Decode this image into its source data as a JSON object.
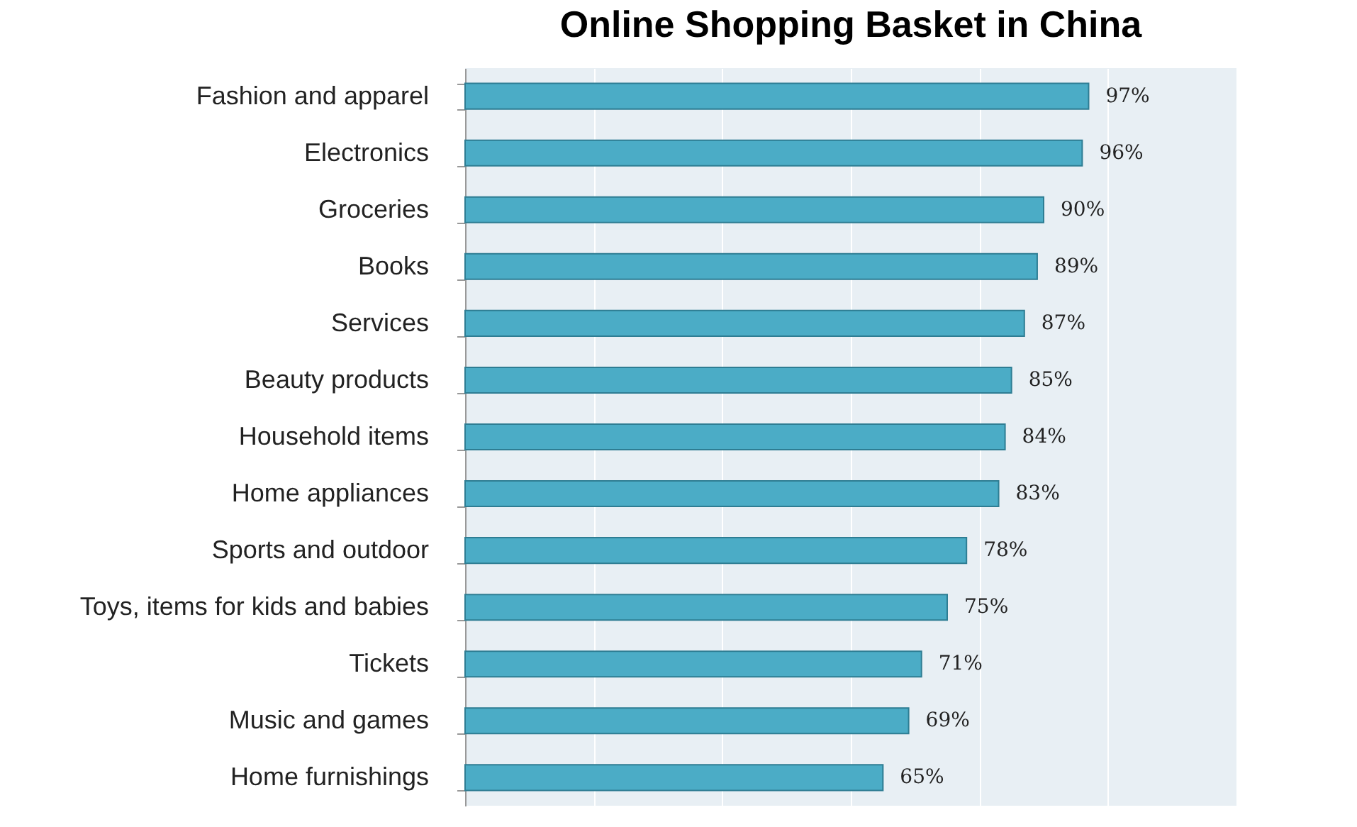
{
  "chart_data": {
    "type": "bar",
    "orientation": "horizontal",
    "title": "Online Shopping Basket in China",
    "categories": [
      "Fashion and apparel",
      "Electronics",
      "Groceries",
      "Books",
      "Services",
      "Beauty products",
      "Household items",
      "Home appliances",
      "Sports and outdoor",
      "Toys, items for kids and babies",
      "Tickets",
      "Music and games",
      "Home furnishings"
    ],
    "values": [
      97,
      96,
      90,
      89,
      87,
      85,
      84,
      83,
      78,
      75,
      71,
      69,
      65
    ],
    "value_labels": [
      "97%",
      "96%",
      "90%",
      "89%",
      "87%",
      "85%",
      "84%",
      "83%",
      "78%",
      "75%",
      "71%",
      "69%",
      "65%"
    ],
    "color": "#4bacc6",
    "xlim": [
      0,
      120
    ],
    "xticks": [
      {
        "value": 0,
        "label": null
      },
      {
        "value": 20,
        "label": null
      },
      {
        "value": 40,
        "label": null
      },
      {
        "value": 60,
        "label": null
      },
      {
        "value": 80,
        "label": null
      },
      {
        "value": 100,
        "label": null
      },
      {
        "value": 120,
        "label": null
      }
    ],
    "grid": "x",
    "tick_labels": "y"
  }
}
